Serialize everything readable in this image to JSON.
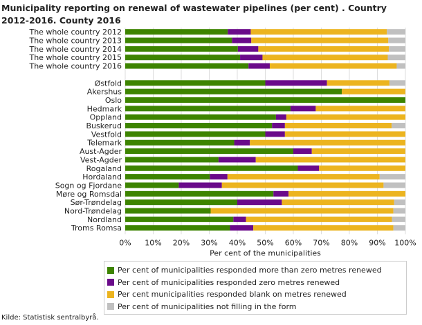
{
  "title": "Municipality reporting on renewal of wastewater pipelines (per cent) . Country 2012-2016. County 2016",
  "source": "Kilde: Statistisk sentralbyrå.",
  "chart_data": {
    "type": "bar",
    "orientation": "horizontal",
    "stacked": true,
    "title": "Municipality reporting on renewal of wastewater pipelines (per cent) . Country 2012-2016. County 2016",
    "xlabel": "Per cent of the municipalities",
    "xlim": [
      0,
      100
    ],
    "xticks": [
      "0%",
      "10%",
      "20%",
      "30%",
      "40%",
      "50%",
      "60%",
      "70%",
      "80%",
      "90%",
      "100%"
    ],
    "grid": true,
    "legend_position": "bottom",
    "categories": [
      "The whole country 2012",
      "The whole country 2013",
      "The whole country 2014",
      "The whole country 2015",
      "The whole country 2016",
      "",
      "Østfold",
      "Akershus",
      "Oslo",
      "Hedmark",
      "Oppland",
      "Buskerud",
      "Vestfold",
      "Telemark",
      "Aust-Agder",
      "Vest-Agder",
      "Rogaland",
      "Hordaland",
      "Sogn og Fjordane",
      "Møre og Romsdal",
      "Sør-Trøndelag",
      "Nord-Trøndelag",
      "Nordland",
      "Troms Romsa"
    ],
    "series": [
      {
        "name": "Per cent of municipalities responded more than zero metres renewed",
        "color": "#3d8400",
        "values": [
          36.6,
          38.1,
          40.2,
          41.0,
          44.0,
          null,
          50.0,
          77.3,
          100,
          59.0,
          53.8,
          52.4,
          50.0,
          38.9,
          60.0,
          33.3,
          61.6,
          30.2,
          19.1,
          52.9,
          40.0,
          30.5,
          38.6,
          37.4
        ]
      },
      {
        "name": "Per cent of municipalities responded zero metres renewed",
        "color": "#6a0a8a",
        "values": [
          8.2,
          6.9,
          7.3,
          8.0,
          7.6,
          null,
          22.0,
          0,
          0,
          9.0,
          3.7,
          4.6,
          7.0,
          5.6,
          6.6,
          13.3,
          7.6,
          6.3,
          15.4,
          5.4,
          15.9,
          0,
          4.5,
          8.3
        ]
      },
      {
        "name": "Per cent municipalities responded blank on metres renewed",
        "color": "#ecb41f",
        "values": [
          48.6,
          48.9,
          46.6,
          44.7,
          45.3,
          null,
          22.3,
          22.7,
          0,
          32.0,
          42.5,
          38.1,
          43.0,
          55.5,
          33.4,
          53.4,
          30.8,
          54.3,
          57.7,
          41.7,
          40.1,
          65.2,
          52.1,
          50.0
        ]
      },
      {
        "name": "Per cent of municipalities not filling in the form",
        "color": "#c0c0c0",
        "values": [
          6.6,
          6.1,
          5.9,
          6.3,
          3.1,
          null,
          5.7,
          0,
          0,
          0,
          0,
          4.9,
          0,
          0,
          0,
          0,
          0,
          9.2,
          7.8,
          0,
          4.0,
          4.3,
          4.8,
          4.3
        ]
      }
    ]
  }
}
